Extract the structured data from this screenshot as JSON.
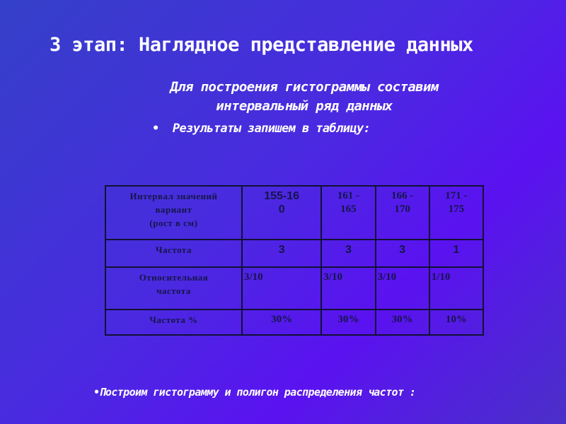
{
  "title": "3 этап: Наглядное представление данных",
  "subtitle_line1": "Для построения гистограммы составим",
  "subtitle_line2": "интервальный ряд данных",
  "bullet1": "Результаты запишем в таблицу:",
  "bullet2": "Построим гистограмму и полигон распределения частот :",
  "table": {
    "rows": [
      {
        "header": [
          "Интервал значений",
          "вариант",
          "(рост в см)"
        ],
        "cells": [
          [
            "155-16",
            "0"
          ],
          [
            "161 -",
            "165"
          ],
          [
            "166 -",
            "170"
          ],
          [
            "171 -",
            "175"
          ]
        ]
      },
      {
        "header": [
          "Частота"
        ],
        "cells": [
          "3",
          "3",
          "3",
          "1"
        ]
      },
      {
        "header": [
          "Относительная",
          "частота"
        ],
        "cells": [
          "3/10",
          "3/10",
          "3/10",
          "1/10"
        ]
      },
      {
        "header": [
          "Частота %"
        ],
        "cells": [
          "30%",
          "30%",
          "30%",
          "10%"
        ]
      }
    ]
  }
}
